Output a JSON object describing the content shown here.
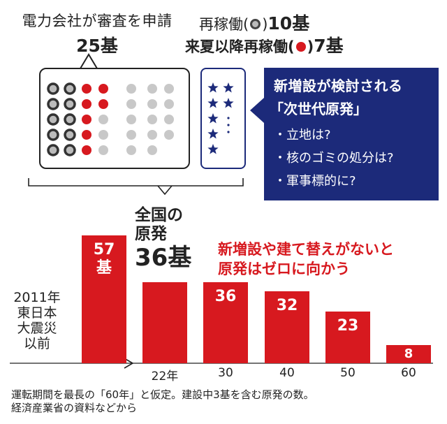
{
  "header": {
    "applied_line1": "電力会社が審査を申請",
    "applied_line2": "25基",
    "legend_restarted_prefix": "再稼働(",
    "legend_restarted_suffix": ")",
    "legend_restarted_count": "10基",
    "legend_next_summer_prefix": "来夏以降再稼働(",
    "legend_next_summer_suffix": ")",
    "legend_next_summer_count": "7基"
  },
  "callout": {
    "title1": "新増設が検討される",
    "title2": "「次世代原発」",
    "items": [
      "・立地は?",
      "・核のゴミの処分は?",
      "・軍事標的に?"
    ]
  },
  "total": {
    "line1": "全国の",
    "line2": "原発",
    "count": "36基"
  },
  "message": {
    "line1": "新増設や建て替えがないと",
    "line2": "原発はゼロに向かう"
  },
  "pre_label": [
    "2011年",
    "東日本",
    "大震災",
    "以前"
  ],
  "footer": {
    "line1": "運転期間を最長の「60年」と仮定。建設中3基を含む原発の数。",
    "line2": "経済産業省の資料などから"
  },
  "colors": {
    "red": "#d7191f",
    "navy": "#1c2a7a",
    "gray": "#c8c8c8",
    "dark": "#333333"
  },
  "chart_data": {
    "type": "bar",
    "title": "全国の原発",
    "xlabel": "",
    "ylabel": "",
    "ylim": [
      0,
      57
    ],
    "baseline": {
      "label": "2011年 東日本 大震災 以前",
      "value": 57,
      "display": "57基"
    },
    "categories": [
      "22年",
      "30",
      "40",
      "50",
      "60"
    ],
    "values": [
      36,
      36,
      32,
      23,
      8
    ],
    "value_labels": [
      "",
      "36",
      "32",
      "23",
      "8"
    ]
  },
  "waffle": {
    "restarted": 10,
    "next_summer": 7,
    "applied_total": 25,
    "new_build_stars": 7
  }
}
